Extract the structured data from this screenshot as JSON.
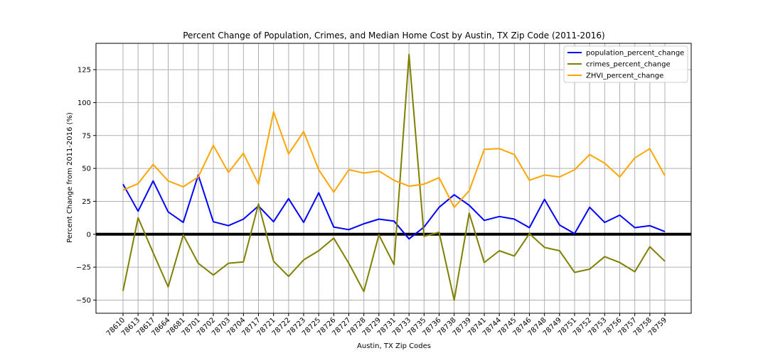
{
  "chart_data": {
    "type": "line",
    "title": "Percent Change of Population, Crimes, and Median Home Cost by Austin, TX Zip Code (2011-2016)",
    "xlabel": "Austin, TX Zip Codes",
    "ylabel": "Percent Change from 2011-2016 (%)",
    "ylim": [
      -60,
      145
    ],
    "yticks": [
      -50,
      -25,
      0,
      25,
      50,
      75,
      100,
      125
    ],
    "grid": true,
    "legend_position": "top-right",
    "zero_line": true,
    "categories": [
      "78610",
      "78613",
      "78617",
      "78664",
      "78681",
      "78701",
      "78702",
      "78703",
      "78704",
      "78717",
      "78721",
      "78722",
      "78723",
      "78725",
      "78726",
      "78727",
      "78728",
      "78729",
      "78731",
      "78733",
      "78735",
      "78736",
      "78738",
      "78739",
      "78741",
      "78744",
      "78745",
      "78746",
      "78748",
      "78749",
      "78751",
      "78752",
      "78753",
      "78756",
      "78757",
      "78758",
      "78759"
    ],
    "series": [
      {
        "name": "population_percent_change",
        "color": "#0000ff",
        "values": [
          38,
          17.5,
          40.5,
          17,
          9,
          45,
          9.5,
          6.5,
          11.5,
          21.5,
          9.5,
          27,
          9,
          31.5,
          5.5,
          3.5,
          8,
          11.5,
          10,
          -3.5,
          5.5,
          20.5,
          30,
          22,
          10.5,
          13.5,
          11.5,
          5,
          26.5,
          7,
          0.5,
          20.5,
          9,
          14.5,
          5,
          6.5,
          2
        ]
      },
      {
        "name": "crimes_percent_change",
        "color": "#808000",
        "values": [
          -43,
          12.5,
          -14,
          -40,
          -0.5,
          -22,
          -31,
          -22,
          -21,
          23,
          -20.5,
          -32,
          -19.5,
          -12.5,
          -3,
          -22,
          -43.5,
          -0.5,
          -23,
          136.5,
          -1.5,
          1.5,
          -50,
          16,
          -21.5,
          -12.5,
          -16.5,
          0.5,
          -10,
          -12.5,
          -29,
          -26.5,
          -17,
          -21.5,
          -28.5,
          -9.5,
          -20.5
        ]
      },
      {
        "name": "ZHVI_percent_change",
        "color": "#ffa500",
        "values": [
          33.5,
          38.5,
          53,
          40.5,
          36,
          43.5,
          67.5,
          47,
          61.5,
          38,
          93,
          61,
          78,
          49,
          32,
          49,
          46.5,
          48,
          41,
          36.5,
          38,
          43,
          20.5,
          33,
          64.5,
          65,
          60.5,
          41,
          45,
          43.5,
          49,
          60.5,
          54,
          43.5,
          58,
          65,
          44.5
        ]
      }
    ]
  }
}
